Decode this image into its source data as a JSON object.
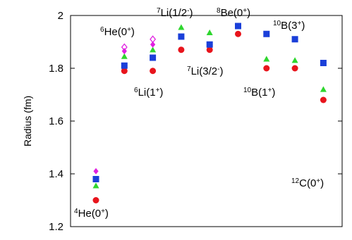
{
  "chart_data": {
    "type": "scatter",
    "ylabel": "Radius (fm)",
    "categories": [
      null,
      null,
      null,
      null,
      null,
      null,
      null,
      null,
      null
    ],
    "ylim": [
      1.2,
      2
    ],
    "yticks": [
      1.2,
      1.4,
      1.6,
      1.8,
      2
    ],
    "series": [
      {
        "color": "#e8141c",
        "marker": "circle",
        "values": [
          1.3,
          1.79,
          1.79,
          1.87,
          1.87,
          1.93,
          1.8,
          1.8,
          1.68
        ]
      },
      {
        "color": "#1a3fd9",
        "marker": "square",
        "values": [
          1.38,
          1.81,
          1.84,
          1.92,
          1.89,
          1.96,
          1.93,
          1.91,
          1.82
        ]
      },
      {
        "color": "#2ed62e",
        "marker": "triangle",
        "values": [
          1.355,
          1.845,
          1.87,
          1.955,
          1.935,
          null,
          1.835,
          1.83,
          1.72
        ]
      },
      {
        "color": "#e020e0",
        "marker": "diamond",
        "values": [
          1.41,
          1.865,
          1.89,
          null,
          null,
          null,
          null,
          null,
          null
        ]
      },
      {
        "color": "#e020e0",
        "marker": "open-diamond",
        "values": [
          null,
          1.88,
          1.91,
          null,
          null,
          null,
          null,
          null,
          null
        ]
      }
    ],
    "annotations": [
      {
        "parts": [
          "4",
          "He(0",
          "+",
          ")"
        ]
      },
      {
        "parts": [
          "6",
          "He(0",
          "+",
          ")"
        ]
      },
      {
        "parts": [
          "6",
          "Li(1",
          "+",
          ")"
        ]
      },
      {
        "parts": [
          "7",
          "Li(1/2",
          "-",
          ")"
        ]
      },
      {
        "parts": [
          "7",
          "Li(3/2",
          "-",
          ")"
        ]
      },
      {
        "parts": [
          "8",
          "Be(0",
          "+",
          ")"
        ]
      },
      {
        "parts": [
          "10",
          "B(1",
          "+",
          ")"
        ]
      },
      {
        "parts": [
          "10",
          "B(3",
          "+",
          ")"
        ]
      },
      {
        "parts": [
          "12",
          "C(0",
          "+",
          ")"
        ]
      }
    ]
  }
}
